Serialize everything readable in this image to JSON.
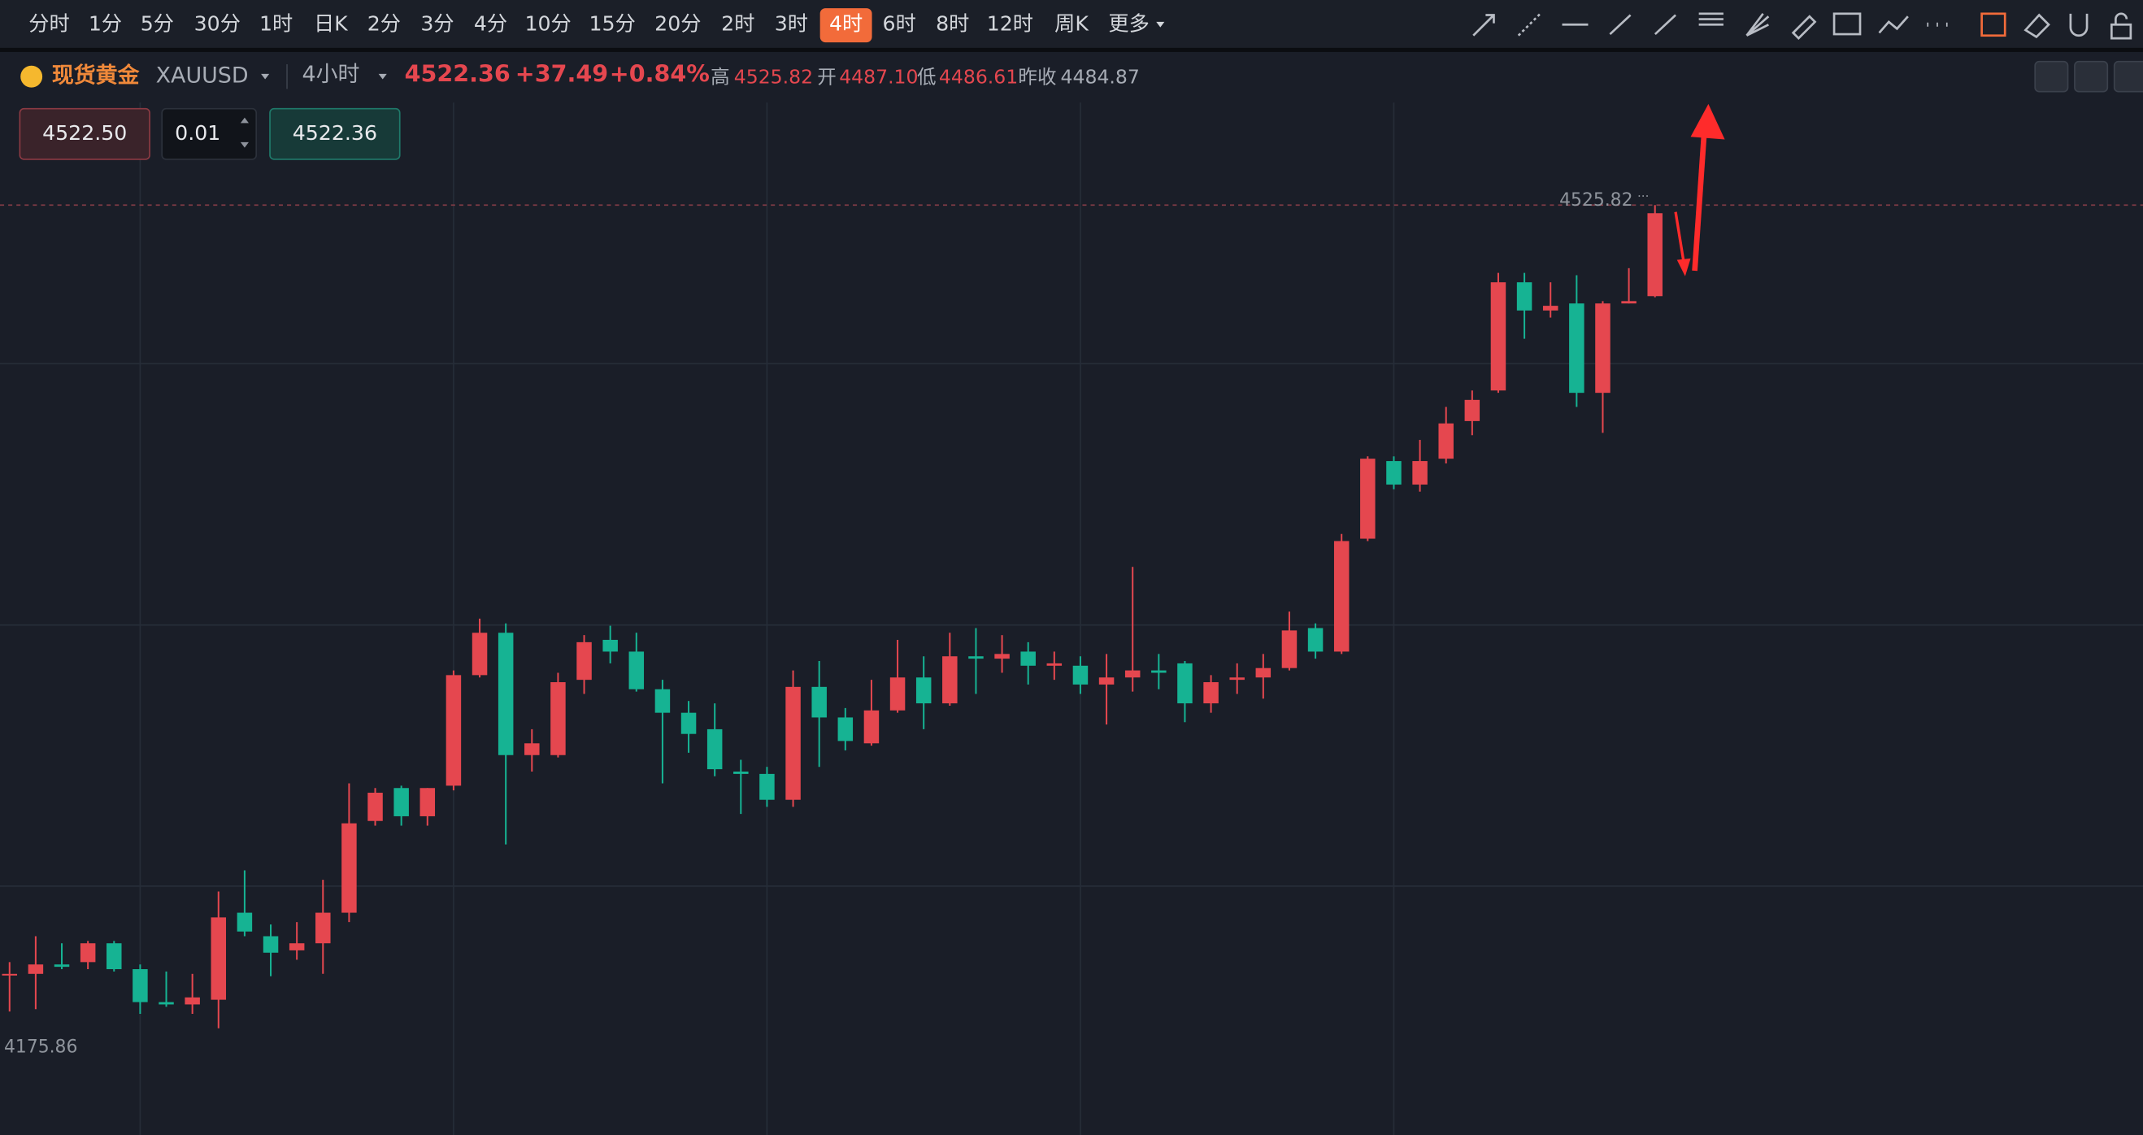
{
  "toolbar": {
    "intervals": [
      {
        "label": "分时"
      },
      {
        "label": "1分"
      },
      {
        "label": "5分"
      },
      {
        "label": "30分"
      },
      {
        "label": "1时"
      },
      {
        "label": "日K"
      },
      {
        "label": "2分"
      },
      {
        "label": "3分"
      },
      {
        "label": "4分"
      },
      {
        "label": "10分"
      },
      {
        "label": "15分"
      },
      {
        "label": "20分"
      },
      {
        "label": "2时"
      },
      {
        "label": "3时"
      },
      {
        "label": "4时",
        "active": true
      },
      {
        "label": "6时"
      },
      {
        "label": "8时"
      },
      {
        "label": "12时"
      },
      {
        "label": "周K"
      },
      {
        "label": "更多"
      }
    ]
  },
  "header": {
    "name": "现货黄金",
    "symbol": "XAUUSD",
    "interval": "4小时",
    "price": "4522.36",
    "change": "+37.49",
    "change_pct": "+0.84%",
    "stats": [
      {
        "label": "高",
        "value": "4525.82"
      },
      {
        "label": "开",
        "value": "4487.10"
      },
      {
        "label": "低",
        "value": "4486.61"
      },
      {
        "label": "昨收",
        "value": "4484.87"
      }
    ]
  },
  "order": {
    "sell": "4522.50",
    "qty": "0.01",
    "buy": "4522.36"
  },
  "chart_data": {
    "type": "candlestick",
    "up_color": "#e5474f",
    "down_color": "#16b393",
    "ylim": [
      4130.5,
      4569.4
    ],
    "ygrid": [
      4458.4,
      4347.3,
      4236.3
    ],
    "grid": true,
    "high_label": 4525.82,
    "low_label": 4175.86,
    "open": [
      4199,
      4199,
      4203,
      4204,
      4212,
      4201,
      4187,
      4186,
      4188,
      4225,
      4215,
      4209,
      4212,
      4225,
      4264,
      4278,
      4266,
      4279,
      4326,
      4344,
      4292,
      4292,
      4324,
      4341,
      4336,
      4320,
      4310,
      4303,
      4285,
      4284,
      4273,
      4321,
      4308,
      4297,
      4311,
      4325,
      4314,
      4334,
      4333,
      4336,
      4330,
      4330,
      4322,
      4325,
      4328,
      4331,
      4314,
      4324,
      4325,
      4329,
      4346,
      4336,
      4384,
      4417,
      4407,
      4418,
      4434,
      4447,
      4493,
      4481,
      4484,
      4446,
      4484,
      4487.1
    ],
    "high": [
      4204,
      4215,
      4212,
      4213,
      4213,
      4203,
      4200,
      4199,
      4234,
      4243,
      4220,
      4221,
      4239,
      4280,
      4278,
      4279,
      4278,
      4328,
      4350,
      4348,
      4303,
      4327,
      4343,
      4347,
      4344,
      4324,
      4315,
      4314,
      4290,
      4287,
      4328,
      4332,
      4312,
      4324,
      4341,
      4334,
      4344,
      4346,
      4343,
      4340,
      4336,
      4334,
      4335,
      4372,
      4335,
      4332,
      4326,
      4331,
      4335,
      4353,
      4348,
      4386,
      4419,
      4419,
      4426,
      4440,
      4447,
      4497,
      4497,
      4493,
      4496,
      4485,
      4499,
      4525.82
    ],
    "low": [
      4183,
      4184,
      4201,
      4201,
      4200,
      4182,
      4185,
      4182,
      4175.86,
      4215,
      4198,
      4205,
      4199,
      4221,
      4262,
      4262,
      4262,
      4277,
      4325,
      4254,
      4285,
      4291,
      4318,
      4331,
      4319,
      4280,
      4293,
      4283,
      4267,
      4270,
      4270,
      4287,
      4294,
      4296,
      4310,
      4303,
      4313,
      4318,
      4327,
      4322,
      4324,
      4318,
      4305,
      4319,
      4320,
      4306,
      4310,
      4318,
      4316,
      4328,
      4333,
      4335,
      4383,
      4405,
      4404,
      4416,
      4428,
      4446,
      4469,
      4478,
      4440,
      4429,
      4484,
      4486.61
    ],
    "close": [
      4199,
      4203,
      4202,
      4212,
      4201,
      4187,
      4186,
      4189,
      4223,
      4217,
      4208,
      4212,
      4225,
      4263,
      4276,
      4266,
      4278,
      4326,
      4344,
      4292,
      4297,
      4323,
      4340,
      4336,
      4320,
      4310,
      4301,
      4286,
      4284,
      4273,
      4321,
      4308,
      4298,
      4311,
      4325,
      4314,
      4334,
      4333,
      4335,
      4330,
      4331,
      4322,
      4325,
      4328,
      4327,
      4314,
      4323,
      4325,
      4329,
      4345,
      4336,
      4383,
      4418,
      4407,
      4417,
      4433,
      4443,
      4493,
      4481,
      4483,
      4446,
      4484,
      4485,
      4522.36
    ]
  }
}
